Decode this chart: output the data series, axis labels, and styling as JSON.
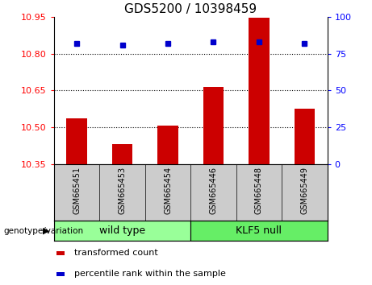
{
  "title": "GDS5200 / 10398459",
  "samples": [
    "GSM665451",
    "GSM665453",
    "GSM665454",
    "GSM665446",
    "GSM665448",
    "GSM665449"
  ],
  "transformed_counts": [
    10.535,
    10.43,
    10.505,
    10.665,
    10.948,
    10.575
  ],
  "percentile_ranks": [
    82,
    81,
    82,
    83,
    83,
    82
  ],
  "ylim_left": [
    10.35,
    10.95
  ],
  "ylim_right": [
    0,
    100
  ],
  "yticks_left": [
    10.35,
    10.5,
    10.65,
    10.8,
    10.95
  ],
  "yticks_right": [
    0,
    25,
    50,
    75,
    100
  ],
  "bar_color": "#cc0000",
  "dot_color": "#0000cc",
  "dotted_gridlines": [
    10.5,
    10.65,
    10.8
  ],
  "groups": [
    {
      "label": "wild type",
      "indices": [
        0,
        1,
        2
      ],
      "color": "#99ff99"
    },
    {
      "label": "KLF5 null",
      "indices": [
        3,
        4,
        5
      ],
      "color": "#66ee66"
    }
  ],
  "legend_items": [
    {
      "label": "transformed count",
      "color": "#cc0000"
    },
    {
      "label": "percentile rank within the sample",
      "color": "#0000cc"
    }
  ],
  "xlabel_area_label": "genotype/variation",
  "sample_bg_color": "#cccccc",
  "fig_width": 4.61,
  "fig_height": 3.54,
  "dpi": 100
}
